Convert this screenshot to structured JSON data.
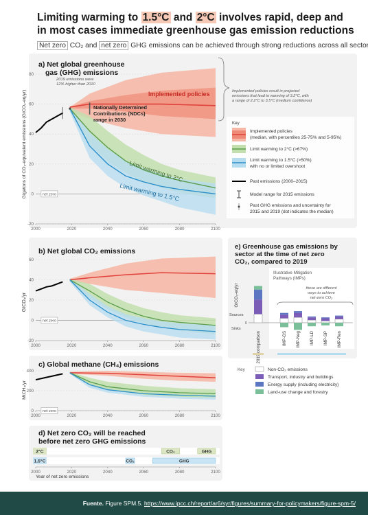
{
  "title": {
    "line1_pre": "Limiting warming to ",
    "hl1": "1.5°C",
    "mid": " and ",
    "hl2": "2°C",
    "line1_post": " involves rapid, deep and",
    "line2": "in most cases immediate greenhouse gas emission reductions"
  },
  "subtitle": {
    "netzero1": "Net zero",
    "co2": "CO₂",
    "and": "and",
    "netzero2": "net zero",
    "rest": "GHG emissions can be achieved through strong reductions across all sectors"
  },
  "panel_a": {
    "title1": "a) Net global greenhouse",
    "title2": "gas (GHG) emissions",
    "ylabel": "Gigatons of CO₂-equivalent emissions (GtCO₂-eq/yr)",
    "note_2019_1": "2019 emissions were",
    "note_2019_2": "12% higher than 2010",
    "label_implemented": "Implemented policies",
    "label_ndc1": "Nationally Determined",
    "label_ndc2": "Contributions (NDCs)",
    "label_ndc3": "range in 2030",
    "label_2c": "Limit warming to 2°C",
    "label_15c": "Limit warming to 1.5°C",
    "netzero_tag": "net zero",
    "callout1": "Implemented policies result in projected",
    "callout2": "emissions that lead to warming of 3.2°C, with",
    "callout3": "a range of 2.2°C to 3.5°C (medium confidence)"
  },
  "key_a": {
    "title": "Key",
    "item1_l1": "Implemented policies",
    "item1_l2": "(median, with percentiles 25-75% and 5-95%)",
    "item2": "Limit warming to 2°C (>67%)",
    "item3_l1": "Limit warming to 1.5°C (>50%)",
    "item3_l2": "with no or limited overshoot",
    "item4": "Past emissions (2000–2015)",
    "item5": "Model range for 2015 emissions",
    "item6_l1": "Past GHG emissions and uncertainty for",
    "item6_l2": "2015 and 2019 (dot indicates the median)"
  },
  "panel_b": {
    "title": "b) Net global CO₂ emissions",
    "ylabel": "GtCO₂/yr",
    "netzero_tag": "net zero"
  },
  "panel_c": {
    "title": "c) Global methane (CH₄) emissions",
    "ylabel": "MtCH₄/yr",
    "netzero_tag": "net zero"
  },
  "panel_d": {
    "title1": "d) Net zero CO₂ will be reached",
    "title2": "before net zero GHG emissions",
    "row_2c": "2°C",
    "row_15c": "1.5°C",
    "co2": "CO₂",
    "ghg": "GHG",
    "xlabel": "Year of net zero emissions"
  },
  "panel_e": {
    "title1": "e) Greenhouse gas emissions by",
    "title2": "sector at the time of net zero",
    "title3": "CO₂, compared to 2019",
    "imp_title1": "Illustrative Mitigation",
    "imp_title2": "Pathways (IMPs)",
    "note1": "these are different",
    "note2": "ways to achieve",
    "note3": "net-zero CO₂",
    "ylabel": "GtCO₂-eq/yr",
    "sources": "Sources",
    "sinks": "Sinks",
    "comparison": "2019 comparison",
    "imps": [
      "IMP-GS",
      "IMP-Neg",
      "IMP-LD",
      "IMP-SP",
      "IMP-Ren"
    ]
  },
  "key_e": {
    "title": "Key",
    "items": [
      "Non-CO₂ emissions",
      "Transport, industry and buildings",
      "Energy supply (including electricity)",
      "Land-use change and forestry"
    ]
  },
  "footer": {
    "label": "Fuente.",
    "text": "Figure SPM.5.",
    "url": "https://www.ipcc.ch/report/ar6/syr/figures/summary-for-policymakers/figure-spm-5/"
  },
  "colors": {
    "implemented": "#e0413a",
    "implemented_band": "#f6b8a6",
    "limit2c": "#5a9e4c",
    "limit2c_band": "#c3dfae",
    "limit15c": "#2b8fc9",
    "limit15c_band": "#b6dcf0",
    "nonco2": "#ffffff",
    "transport": "#7b5db7",
    "energy": "#5d76c2",
    "landuse": "#7bbf9a"
  },
  "chart_data": [
    {
      "id": "a",
      "type": "area",
      "xlim": [
        2000,
        2100
      ],
      "ylim": [
        -20,
        80
      ],
      "xticks": [
        2000,
        2020,
        2040,
        2060,
        2080,
        2100
      ],
      "yticks": [
        -20,
        0,
        20,
        40,
        60,
        80
      ],
      "past": {
        "x": [
          2000,
          2003,
          2006,
          2009,
          2012,
          2015
        ],
        "y": [
          41,
          44,
          48,
          50,
          52,
          54
        ]
      },
      "series": [
        {
          "name": "Implemented policies",
          "x": [
            2019,
            2030,
            2050,
            2070,
            2100
          ],
          "median": [
            58,
            60,
            60,
            60,
            59
          ],
          "p5": [
            55,
            50,
            44,
            40,
            38
          ],
          "p95": [
            58,
            67,
            76,
            81,
            84
          ],
          "p25": [
            57,
            57,
            55,
            52,
            50
          ],
          "p75": [
            58,
            62,
            66,
            69,
            71
          ]
        },
        {
          "name": "Limit warming to 2°C",
          "x": [
            2019,
            2030,
            2040,
            2050,
            2060,
            2070,
            2080,
            2100
          ],
          "median": [
            57,
            42,
            31,
            22,
            16,
            12,
            9,
            4
          ],
          "low": [
            55,
            33,
            22,
            14,
            8,
            4,
            1,
            -3
          ],
          "high": [
            58,
            52,
            42,
            33,
            26,
            20,
            16,
            11
          ]
        },
        {
          "name": "Limit warming to 1.5°C",
          "x": [
            2019,
            2030,
            2040,
            2050,
            2060,
            2070,
            2080,
            2100
          ],
          "median": [
            57,
            32,
            20,
            12,
            8,
            5,
            3,
            0
          ],
          "low": [
            55,
            24,
            12,
            4,
            -1,
            -5,
            -9,
            -14
          ],
          "high": [
            58,
            41,
            30,
            22,
            17,
            13,
            10,
            7
          ]
        }
      ]
    },
    {
      "id": "b",
      "type": "area",
      "xlim": [
        2000,
        2100
      ],
      "ylim": [
        -20,
        60
      ],
      "xticks": [
        2000,
        2020,
        2040,
        2060,
        2080,
        2100
      ],
      "yticks": [
        -20,
        0,
        20,
        40,
        60
      ],
      "past": {
        "x": [
          2000,
          2003,
          2006,
          2009,
          2012,
          2015
        ],
        "y": [
          29,
          31,
          33,
          34,
          36,
          38
        ]
      },
      "series": [
        {
          "name": "Implemented policies",
          "x": [
            2019,
            2030,
            2050,
            2070,
            2100
          ],
          "median": [
            40,
            42,
            45,
            47,
            46
          ],
          "p5": [
            38,
            36,
            30,
            27,
            22
          ],
          "p95": [
            41,
            47,
            56,
            61,
            63
          ]
        },
        {
          "name": "Limit warming to 2°C",
          "x": [
            2019,
            2030,
            2040,
            2050,
            2060,
            2070,
            2080,
            2100
          ],
          "median": [
            40,
            29,
            18,
            10,
            4,
            0,
            -2,
            -5
          ],
          "low": [
            38,
            22,
            11,
            3,
            -3,
            -7,
            -10,
            -14
          ],
          "high": [
            41,
            36,
            26,
            18,
            12,
            8,
            5,
            2
          ]
        },
        {
          "name": "Limit warming to 1.5°C",
          "x": [
            2019,
            2030,
            2040,
            2050,
            2060,
            2070,
            2080,
            2100
          ],
          "median": [
            40,
            20,
            8,
            0,
            -4,
            -7,
            -9,
            -11
          ],
          "low": [
            38,
            15,
            3,
            -6,
            -11,
            -14,
            -17,
            -19
          ],
          "high": [
            41,
            26,
            14,
            6,
            2,
            -1,
            -3,
            -5
          ]
        }
      ]
    },
    {
      "id": "c",
      "type": "area",
      "xlim": [
        2000,
        2100
      ],
      "ylim": [
        0,
        400
      ],
      "xticks": [
        2000,
        2020,
        2040,
        2060,
        2080,
        2100
      ],
      "yticks": [
        0,
        200,
        400
      ],
      "past": {
        "x": [
          2000,
          2005,
          2010,
          2015
        ],
        "y": [
          310,
          330,
          350,
          370
        ]
      },
      "series": [
        {
          "name": "Implemented policies",
          "x": [
            2019,
            2040,
            2060,
            2080,
            2100
          ],
          "median": [
            380,
            375,
            360,
            345,
            330
          ],
          "low": [
            370,
            350,
            320,
            300,
            290
          ],
          "high": [
            390,
            400,
            390,
            380,
            375
          ]
        },
        {
          "name": "Limit warming to 2°C",
          "x": [
            2019,
            2030,
            2040,
            2060,
            2080,
            2100
          ],
          "median": [
            380,
            290,
            240,
            200,
            180,
            170
          ],
          "low": [
            370,
            260,
            210,
            160,
            140,
            130
          ],
          "high": [
            390,
            330,
            290,
            250,
            225,
            215
          ]
        },
        {
          "name": "Limit warming to 1.5°C",
          "x": [
            2019,
            2030,
            2040,
            2060,
            2080,
            2100
          ],
          "median": [
            380,
            260,
            210,
            170,
            155,
            145
          ],
          "low": [
            370,
            230,
            180,
            140,
            120,
            110
          ],
          "high": [
            390,
            290,
            250,
            210,
            195,
            185
          ]
        }
      ]
    },
    {
      "id": "d",
      "type": "bar",
      "xlim": [
        2000,
        2100
      ],
      "xticks": [
        2000,
        2020,
        2040,
        2060,
        2080,
        2100
      ],
      "rows": [
        {
          "name": "2°C",
          "CO2": [
            2070,
            2080
          ],
          "GHG": [
            2090,
            2100
          ]
        },
        {
          "name": "1.5°C",
          "CO2": [
            2050,
            2055
          ],
          "GHG": [
            2065,
            2100
          ]
        }
      ]
    },
    {
      "id": "e",
      "type": "bar",
      "categories": [
        "2019 comparison",
        "IMP-GS",
        "IMP-Neg",
        "IMP-LD",
        "IMP-SP",
        "IMP-Ren"
      ],
      "series": [
        {
          "name": "Non-CO₂ emissions",
          "values": [
            12,
            5,
            6,
            3,
            2,
            4
          ]
        },
        {
          "name": "Transport, industry and buildings",
          "values": [
            20,
            4,
            5,
            3,
            3,
            3
          ]
        },
        {
          "name": "Energy supply (including electricity)",
          "values": [
            14,
            2,
            2,
            1,
            1,
            1
          ]
        },
        {
          "name": "Land-use change and forestry",
          "values": [
            5,
            -5,
            -8,
            -4,
            -3,
            -4
          ]
        }
      ]
    }
  ]
}
